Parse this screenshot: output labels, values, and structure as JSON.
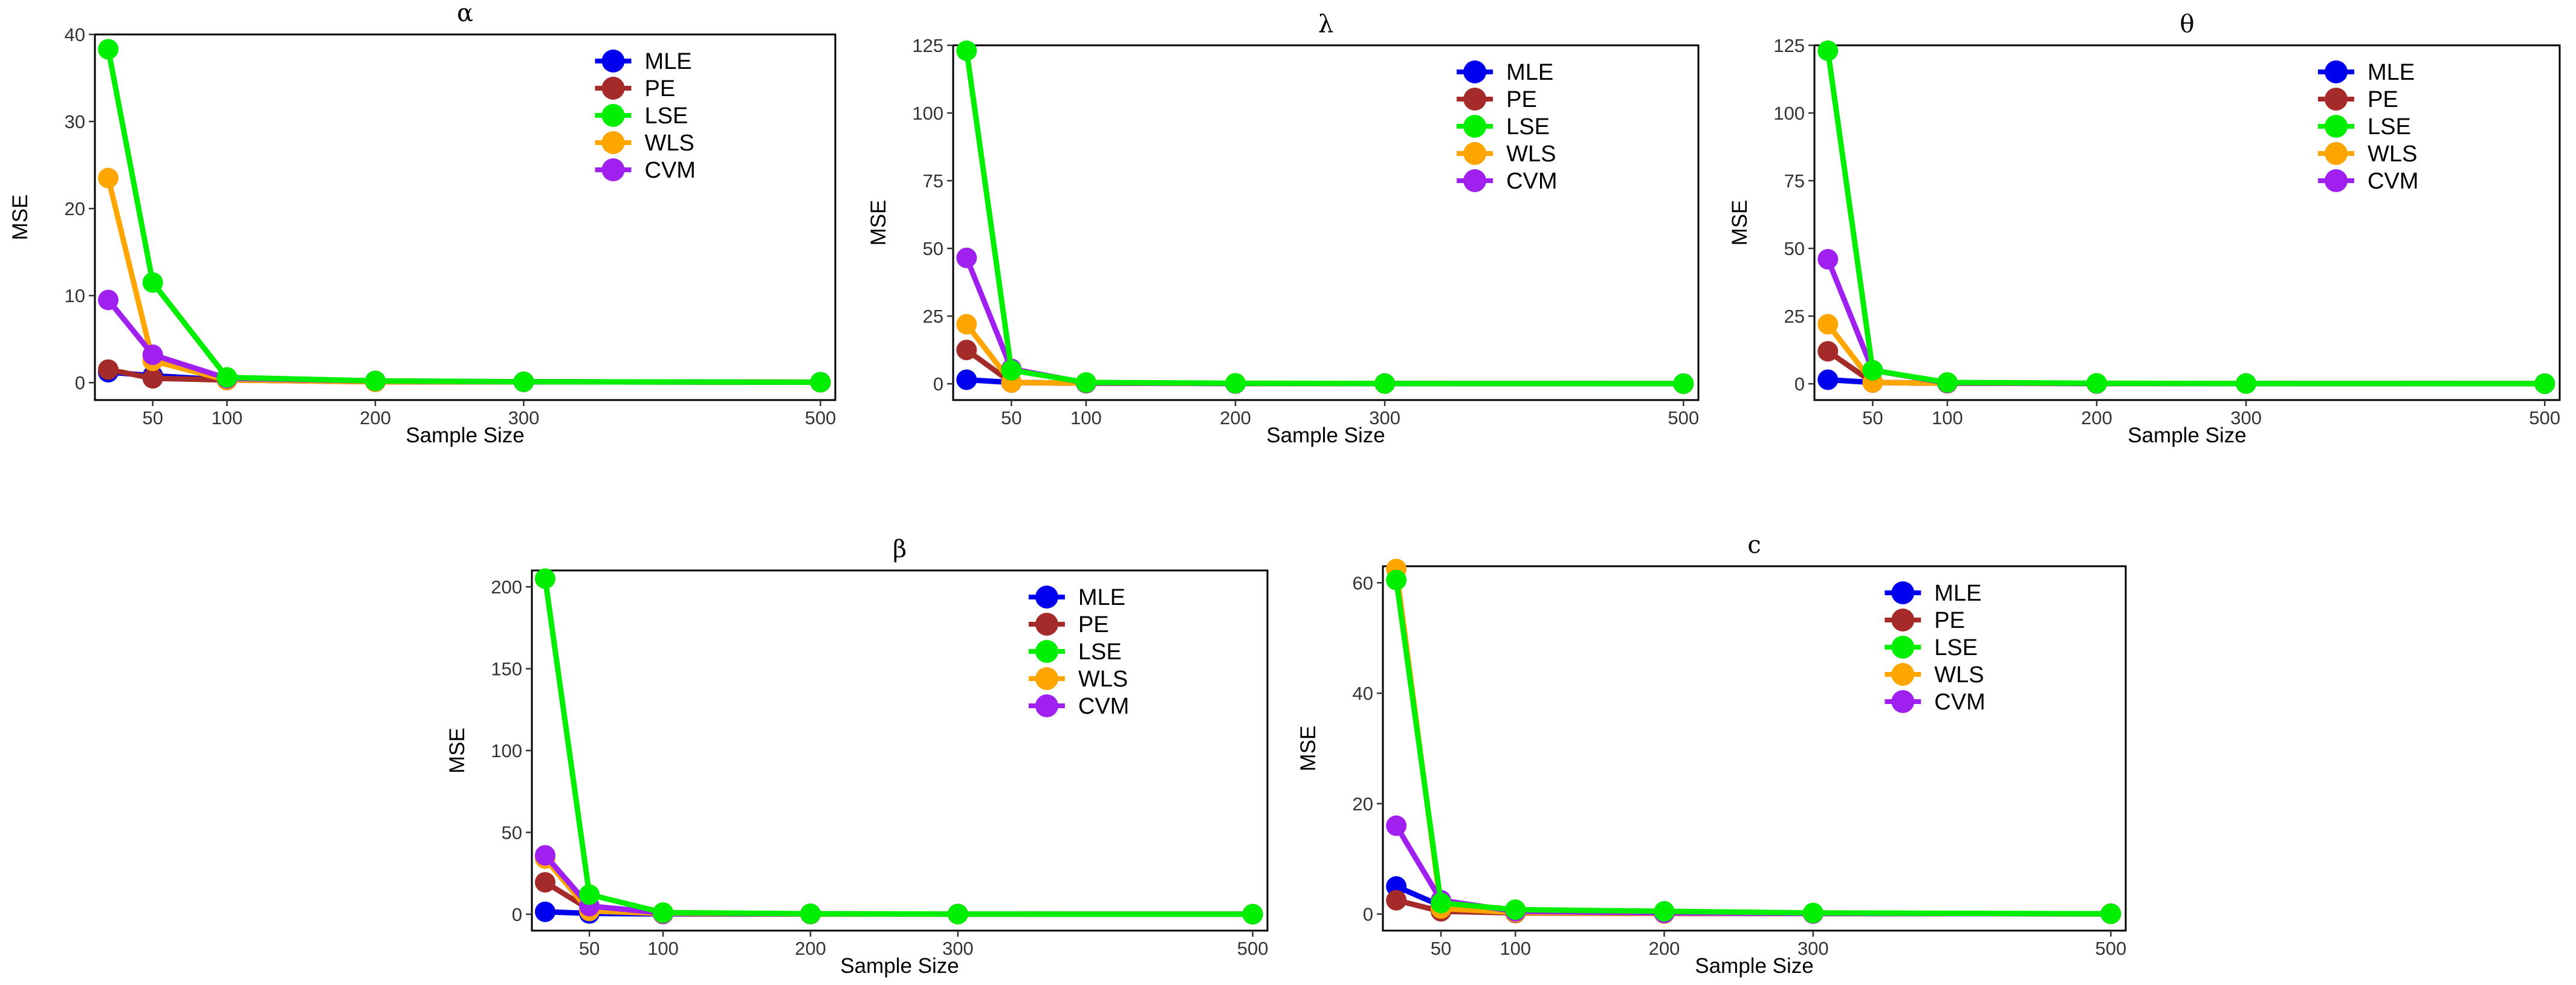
{
  "chart_data": [
    {
      "type": "line",
      "title": "α",
      "xlabel": "Sample Size",
      "ylabel": "MSE",
      "x": [
        20,
        50,
        100,
        200,
        300,
        500
      ],
      "xticks": [
        50,
        100,
        200,
        300,
        500
      ],
      "xlim": [
        11,
        510
      ],
      "ylim": [
        -2,
        40
      ],
      "yticks": [
        0,
        10,
        20,
        30,
        40
      ],
      "legend_position": "top-right",
      "series": [
        {
          "name": "MLE",
          "color": "#0000EE",
          "values": [
            1.2,
            0.8,
            0.3,
            0.1,
            0.1,
            0.05
          ]
        },
        {
          "name": "PE",
          "color": "#A52A2A",
          "values": [
            1.5,
            0.5,
            0.3,
            0.1,
            0.1,
            0.05
          ]
        },
        {
          "name": "LSE",
          "color": "#00EE00",
          "values": [
            38.3,
            11.5,
            0.6,
            0.2,
            0.1,
            0.05
          ]
        },
        {
          "name": "WLS",
          "color": "#FFA500",
          "values": [
            23.5,
            2.5,
            0.3,
            0.1,
            0.1,
            0.05
          ]
        },
        {
          "name": "CVM",
          "color": "#A020F0",
          "values": [
            9.5,
            3.2,
            0.5,
            0.2,
            0.1,
            0.05
          ]
        }
      ]
    },
    {
      "type": "line",
      "title": "λ",
      "xlabel": "Sample Size",
      "ylabel": "MSE",
      "x": [
        20,
        50,
        100,
        200,
        300,
        500
      ],
      "xticks": [
        50,
        100,
        200,
        300,
        500
      ],
      "xlim": [
        11,
        510
      ],
      "ylim": [
        -6,
        125
      ],
      "yticks": [
        0,
        25,
        50,
        75,
        100,
        125
      ],
      "legend_position": "top-right",
      "series": [
        {
          "name": "MLE",
          "color": "#0000EE",
          "values": [
            1.5,
            0.5,
            0.2,
            0.1,
            0.1,
            0.05
          ]
        },
        {
          "name": "PE",
          "color": "#A52A2A",
          "values": [
            12.5,
            0.5,
            0.2,
            0.1,
            0.1,
            0.05
          ]
        },
        {
          "name": "LSE",
          "color": "#00EE00",
          "values": [
            123,
            5,
            0.5,
            0.2,
            0.1,
            0.05
          ]
        },
        {
          "name": "WLS",
          "color": "#FFA500",
          "values": [
            22,
            0.5,
            0.2,
            0.1,
            0.1,
            0.05
          ]
        },
        {
          "name": "CVM",
          "color": "#A020F0",
          "values": [
            46.5,
            5.5,
            0.3,
            0.1,
            0.1,
            0.05
          ]
        }
      ]
    },
    {
      "type": "line",
      "title": "θ",
      "xlabel": "Sample Size",
      "ylabel": "MSE",
      "x": [
        20,
        50,
        100,
        200,
        300,
        500
      ],
      "xticks": [
        50,
        100,
        200,
        300,
        500
      ],
      "xlim": [
        11,
        510
      ],
      "ylim": [
        -6,
        125
      ],
      "yticks": [
        0,
        25,
        50,
        75,
        100,
        125
      ],
      "legend_position": "top-right",
      "series": [
        {
          "name": "MLE",
          "color": "#0000EE",
          "values": [
            1.5,
            0.5,
            0.2,
            0.1,
            0.1,
            0.05
          ]
        },
        {
          "name": "PE",
          "color": "#A52A2A",
          "values": [
            12,
            0.5,
            0.2,
            0.1,
            0.1,
            0.05
          ]
        },
        {
          "name": "LSE",
          "color": "#00EE00",
          "values": [
            123,
            5,
            0.5,
            0.2,
            0.1,
            0.05
          ]
        },
        {
          "name": "WLS",
          "color": "#FFA500",
          "values": [
            22,
            0.5,
            0.2,
            0.1,
            0.1,
            0.05
          ]
        },
        {
          "name": "CVM",
          "color": "#A020F0",
          "values": [
            46,
            5,
            0.3,
            0.1,
            0.1,
            0.05
          ]
        }
      ]
    },
    {
      "type": "line",
      "title": "β",
      "xlabel": "Sample Size",
      "ylabel": "MSE",
      "x": [
        20,
        50,
        100,
        200,
        300,
        500
      ],
      "xticks": [
        50,
        100,
        200,
        300,
        500
      ],
      "xlim": [
        11,
        510
      ],
      "ylim": [
        -10,
        210
      ],
      "yticks": [
        0,
        50,
        100,
        150,
        200
      ],
      "legend_position": "top-right",
      "series": [
        {
          "name": "MLE",
          "color": "#0000EE",
          "values": [
            1.5,
            0.5,
            0.2,
            0.1,
            0.1,
            0.05
          ]
        },
        {
          "name": "PE",
          "color": "#A52A2A",
          "values": [
            19.5,
            3,
            0.5,
            0.2,
            0.1,
            0.05
          ]
        },
        {
          "name": "LSE",
          "color": "#00EE00",
          "values": [
            205,
            12,
            1,
            0.3,
            0.1,
            0.05
          ]
        },
        {
          "name": "WLS",
          "color": "#FFA500",
          "values": [
            34,
            2,
            0.5,
            0.2,
            0.1,
            0.05
          ]
        },
        {
          "name": "CVM",
          "color": "#A020F0",
          "values": [
            36,
            5,
            0.8,
            0.3,
            0.1,
            0.05
          ]
        }
      ]
    },
    {
      "type": "line",
      "title": "c",
      "xlabel": "Sample Size",
      "ylabel": "MSE",
      "x": [
        20,
        50,
        100,
        200,
        300,
        500
      ],
      "xticks": [
        50,
        100,
        200,
        300,
        500
      ],
      "xlim": [
        11,
        510
      ],
      "ylim": [
        -3,
        63
      ],
      "yticks": [
        0,
        20,
        40,
        60
      ],
      "legend_position": "top-right",
      "series": [
        {
          "name": "MLE",
          "color": "#0000EE",
          "values": [
            5,
            1.5,
            0.3,
            0.1,
            0.1,
            0.05
          ]
        },
        {
          "name": "PE",
          "color": "#A52A2A",
          "values": [
            2.5,
            0.5,
            0.2,
            0.1,
            0.1,
            0.05
          ]
        },
        {
          "name": "LSE",
          "color": "#00EE00",
          "values": [
            60.5,
            2,
            0.8,
            0.5,
            0.2,
            0.05
          ]
        },
        {
          "name": "WLS",
          "color": "#FFA500",
          "values": [
            62.5,
            1,
            0.3,
            0.1,
            0.1,
            0.05
          ]
        },
        {
          "name": "CVM",
          "color": "#A020F0",
          "values": [
            16,
            2.5,
            0.5,
            0.2,
            0.1,
            0.05
          ]
        }
      ]
    }
  ]
}
